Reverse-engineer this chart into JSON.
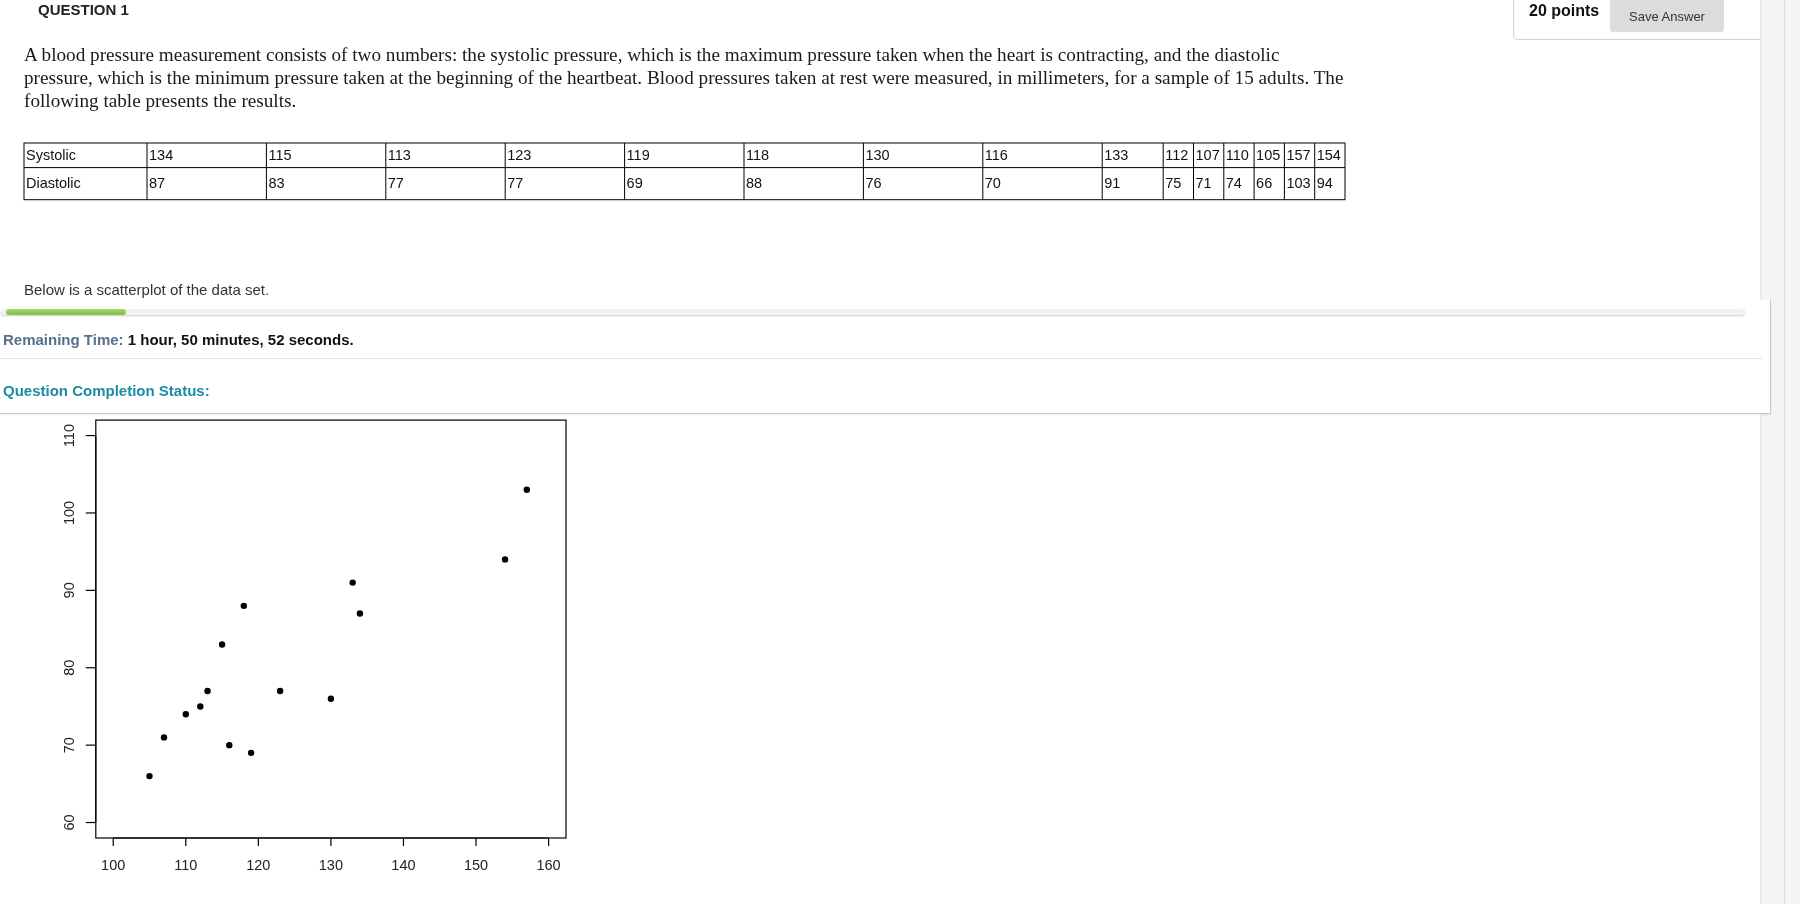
{
  "chart_data": {
    "type": "scatter",
    "x": [
      134,
      115,
      113,
      123,
      119,
      118,
      130,
      116,
      133,
      112,
      107,
      110,
      105,
      157,
      154
    ],
    "values": [
      87,
      83,
      77,
      77,
      69,
      88,
      76,
      70,
      91,
      75,
      71,
      74,
      66,
      103,
      94
    ],
    "color": "#000000",
    "marker": "circle",
    "xlim": [
      97.6,
      162.4
    ],
    "ylim": [
      58,
      112
    ],
    "xticks": [
      100,
      110,
      120,
      130,
      140,
      150,
      160
    ],
    "yticks": [
      60,
      70,
      80,
      90,
      100,
      110
    ],
    "annotations": [
      "QUESTION 1",
      "20 points",
      "Save Answer",
      "A blood pressure measurement consists of two numbers: the systolic pressure, which is the maximum pressure taken when the heart is contracting, and the diastolic pressure, which is the minimum pressure taken at the beginning of the heartbeat. Blood pressures taken at rest were measured, in millimeters, for a sample of 15 adults. The following table presents the results.",
      "Systolic",
      "134",
      "115",
      "113",
      "123",
      "119",
      "118",
      "130",
      "116",
      "133",
      "112",
      "107",
      "110",
      "105",
      "157",
      "154",
      "Diastolic",
      "87",
      "83",
      "77",
      "77",
      "69",
      "88",
      "76",
      "70",
      "91",
      "75",
      "71",
      "74",
      "66",
      "103",
      "94",
      "Below is a scatterplot of the data set.",
      "Remaining Time:",
      "1 hour, 50 minutes, 52 seconds.",
      "Question Completion Status:"
    ]
  }
}
